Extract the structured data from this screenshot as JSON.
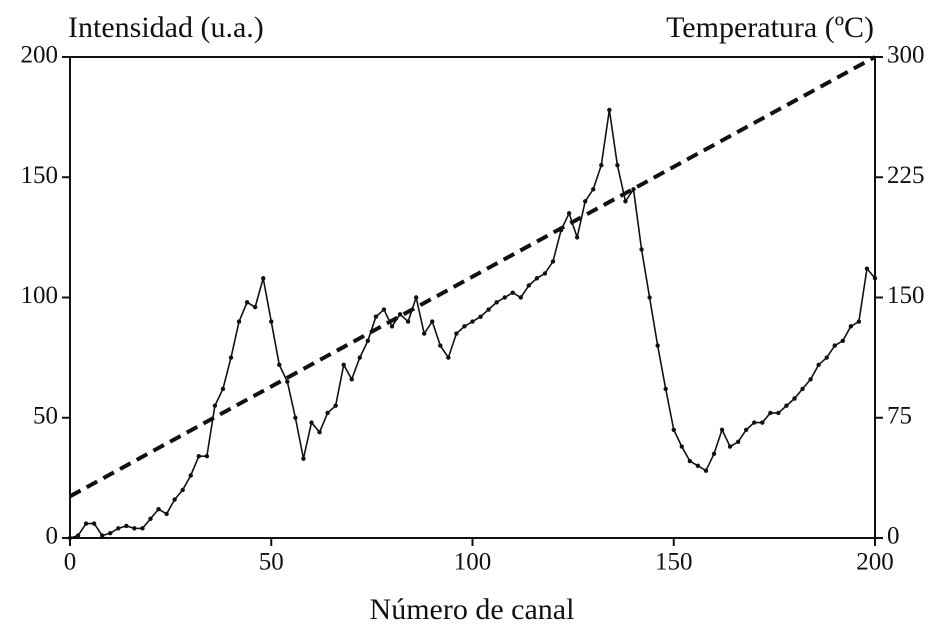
{
  "chart_data": {
    "type": "line",
    "y_label": "Intensidad (u.a.)",
    "y2_label": "Temperatura (ºC)",
    "x_label": "Número de canal",
    "xlim": [
      0,
      200
    ],
    "xticks": [
      0,
      50,
      100,
      150,
      200
    ],
    "ylim": [
      0,
      200
    ],
    "yticks": [
      0,
      50,
      100,
      150,
      200
    ],
    "y2lim": [
      0,
      300
    ],
    "y2ticks": [
      0,
      75,
      150,
      225,
      300
    ],
    "series": [
      {
        "color": "#111111",
        "style": "solid",
        "markers": true,
        "x": [
          0,
          2,
          4,
          6,
          8,
          10,
          12,
          14,
          16,
          18,
          20,
          22,
          24,
          26,
          28,
          30,
          32,
          34,
          36,
          38,
          40,
          42,
          44,
          46,
          48,
          50,
          52,
          54,
          56,
          58,
          60,
          62,
          64,
          66,
          68,
          70,
          72,
          74,
          76,
          78,
          80,
          82,
          84,
          86,
          88,
          90,
          92,
          94,
          96,
          98,
          100,
          102,
          104,
          106,
          108,
          110,
          112,
          114,
          116,
          118,
          120,
          122,
          124,
          126,
          128,
          130,
          132,
          134,
          136,
          138,
          140,
          142,
          144,
          146,
          148,
          150,
          152,
          154,
          156,
          158,
          160,
          162,
          164,
          166,
          168,
          170,
          172,
          174,
          176,
          178,
          180,
          182,
          184,
          186,
          188,
          190,
          192,
          194,
          196,
          198,
          200
        ],
        "values": [
          0,
          1,
          6,
          6,
          1,
          2,
          4,
          5,
          4,
          4,
          8,
          12,
          10,
          16,
          20,
          26,
          34,
          34,
          55,
          62,
          75,
          90,
          98,
          96,
          108,
          90,
          72,
          65,
          50,
          33,
          48,
          44,
          52,
          55,
          72,
          66,
          75,
          82,
          92,
          95,
          88,
          93,
          90,
          100,
          85,
          90,
          80,
          75,
          85,
          88,
          90,
          92,
          95,
          98,
          100,
          102,
          100,
          105,
          108,
          110,
          115,
          128,
          135,
          125,
          140,
          145,
          155,
          178,
          155,
          140,
          145,
          120,
          100,
          80,
          62,
          45,
          38,
          32,
          30,
          28,
          35,
          45,
          38,
          40,
          45,
          48,
          48,
          52,
          52,
          55,
          58,
          62,
          66,
          72,
          75,
          80,
          82,
          88,
          90,
          112,
          108
        ]
      },
      {
        "color": "#111111",
        "style": "dashed",
        "axis": "y2",
        "markers": false,
        "x": [
          0,
          200
        ],
        "values": [
          26,
          300
        ]
      }
    ]
  }
}
